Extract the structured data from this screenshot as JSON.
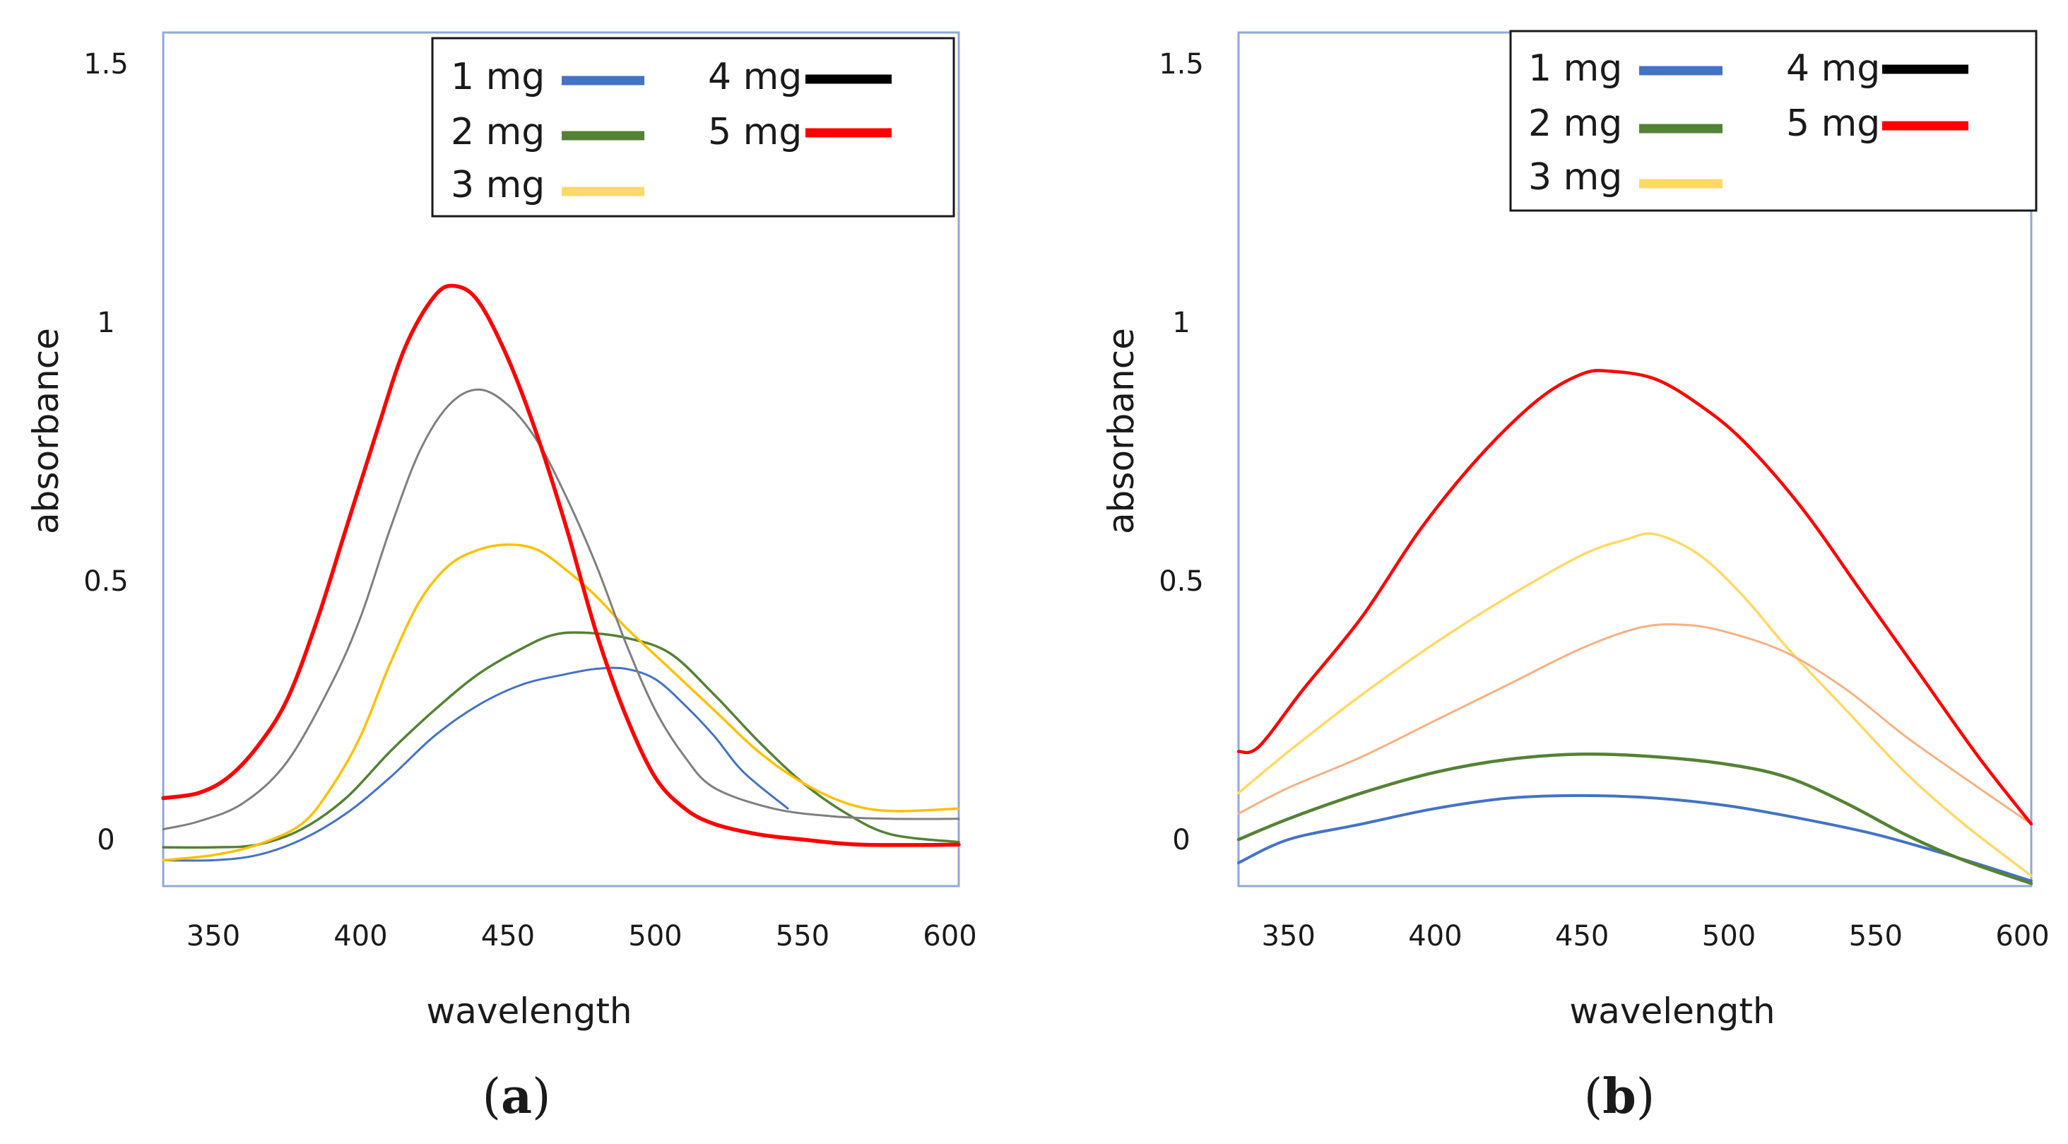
{
  "figure_labels": [
    {
      "open": "(",
      "letter": "a",
      "close": ")"
    },
    {
      "open": "(",
      "letter": "b",
      "close": ")"
    }
  ],
  "chart_data": [
    {
      "type": "line",
      "panel": "a",
      "title": "",
      "xlabel": "wavelength",
      "ylabel": "absorbance",
      "xlim": [
        333,
        603
      ],
      "ylim": [
        -0.09,
        1.56
      ],
      "xticks": [
        350,
        400,
        450,
        500,
        550,
        600
      ],
      "xtick_labels": [
        "350",
        "400",
        "450",
        "500",
        "550",
        "600"
      ],
      "yticks": [
        0,
        0.5,
        1,
        1.5
      ],
      "ytick_labels": [
        "0",
        "0.5",
        "1",
        "1.5"
      ],
      "legend_position": "top-right",
      "series": [
        {
          "name": "1 mg",
          "color": "#4472c4",
          "legend_color": "#4472c4",
          "x": [
            333,
            350,
            365,
            380,
            395,
            410,
            425,
            440,
            455,
            470,
            480,
            490,
            500,
            510,
            520,
            530,
            545
          ],
          "y": [
            -0.04,
            -0.04,
            -0.03,
            0.0,
            0.05,
            0.12,
            0.2,
            0.26,
            0.3,
            0.32,
            0.33,
            0.33,
            0.31,
            0.26,
            0.2,
            0.13,
            0.06
          ]
        },
        {
          "name": "2 mg",
          "color": "#548235",
          "legend_color": "#548235",
          "x": [
            333,
            350,
            365,
            380,
            395,
            410,
            425,
            440,
            455,
            465,
            475,
            490,
            505,
            520,
            535,
            550,
            565,
            580,
            603
          ],
          "y": [
            -0.015,
            -0.015,
            -0.01,
            0.02,
            0.08,
            0.17,
            0.25,
            0.32,
            0.37,
            0.395,
            0.4,
            0.39,
            0.36,
            0.28,
            0.19,
            0.11,
            0.05,
            0.01,
            -0.005
          ]
        },
        {
          "name": "3 mg",
          "color": "#ffc000",
          "legend_color": "#ffd966",
          "x": [
            333,
            350,
            365,
            380,
            390,
            400,
            410,
            420,
            430,
            440,
            450,
            460,
            470,
            480,
            490,
            505,
            520,
            535,
            550,
            565,
            580,
            603
          ],
          "y": [
            -0.04,
            -0.03,
            -0.01,
            0.03,
            0.1,
            0.2,
            0.34,
            0.46,
            0.53,
            0.56,
            0.57,
            0.56,
            0.52,
            0.47,
            0.41,
            0.33,
            0.25,
            0.17,
            0.11,
            0.07,
            0.055,
            0.06
          ]
        },
        {
          "name": "4 mg",
          "color": "#7f7f7f",
          "legend_color": "#000000",
          "x": [
            333,
            345,
            360,
            375,
            390,
            400,
            410,
            420,
            430,
            440,
            450,
            460,
            470,
            480,
            490,
            500,
            510,
            520,
            540,
            560,
            580,
            603
          ],
          "y": [
            0.02,
            0.035,
            0.07,
            0.15,
            0.3,
            0.43,
            0.6,
            0.75,
            0.84,
            0.87,
            0.84,
            0.77,
            0.66,
            0.53,
            0.38,
            0.25,
            0.16,
            0.1,
            0.06,
            0.045,
            0.04,
            0.04
          ]
        },
        {
          "name": "5 mg",
          "color": "#ff0000",
          "legend_color": "#ff0000",
          "x": [
            333,
            345,
            355,
            365,
            375,
            385,
            395,
            405,
            415,
            425,
            432,
            440,
            450,
            460,
            470,
            480,
            490,
            500,
            510,
            520,
            535,
            550,
            570,
            603
          ],
          "y": [
            0.08,
            0.09,
            0.12,
            0.18,
            0.27,
            0.42,
            0.6,
            0.78,
            0.95,
            1.05,
            1.07,
            1.04,
            0.93,
            0.78,
            0.6,
            0.4,
            0.24,
            0.12,
            0.06,
            0.03,
            0.01,
            0.0,
            -0.01,
            -0.01
          ]
        }
      ]
    },
    {
      "type": "line",
      "panel": "b",
      "title": "",
      "xlabel": "wavelength",
      "ylabel": "absorbance",
      "xlim": [
        333,
        603
      ],
      "ylim": [
        -0.09,
        1.56
      ],
      "xticks": [
        350,
        400,
        450,
        500,
        550,
        600
      ],
      "xtick_labels": [
        "350",
        "400",
        "450",
        "500",
        "550",
        "600"
      ],
      "yticks": [
        0,
        0.5,
        1,
        1.5
      ],
      "ytick_labels": [
        "0",
        "0.5",
        "1",
        "1.5"
      ],
      "legend_position": "top-right",
      "series": [
        {
          "name": "1 mg",
          "color": "#4472c4",
          "legend_color": "#4472c4",
          "x": [
            333,
            350,
            375,
            400,
            425,
            450,
            475,
            500,
            525,
            550,
            575,
            603
          ],
          "y": [
            -0.045,
            0.0,
            0.03,
            0.06,
            0.08,
            0.085,
            0.08,
            0.065,
            0.04,
            0.01,
            -0.03,
            -0.08
          ]
        },
        {
          "name": "2 mg",
          "color": "#548235",
          "legend_color": "#548235",
          "x": [
            333,
            350,
            375,
            400,
            425,
            450,
            475,
            500,
            520,
            540,
            560,
            580,
            603
          ],
          "y": [
            0.0,
            0.04,
            0.09,
            0.13,
            0.155,
            0.165,
            0.16,
            0.145,
            0.12,
            0.07,
            0.01,
            -0.04,
            -0.085
          ]
        },
        {
          "name": "3 mg",
          "color": "#ffd966",
          "legend_color": "#ffd966",
          "x": [
            333,
            350,
            375,
            400,
            425,
            450,
            465,
            475,
            490,
            505,
            520,
            540,
            560,
            580,
            603
          ],
          "y": [
            0.09,
            0.17,
            0.28,
            0.38,
            0.47,
            0.55,
            0.58,
            0.59,
            0.55,
            0.47,
            0.37,
            0.25,
            0.13,
            0.03,
            -0.07
          ]
        },
        {
          "name": "4 mg",
          "color": "#f4b183",
          "legend_color": "#000000",
          "x": [
            333,
            350,
            375,
            400,
            425,
            450,
            470,
            485,
            500,
            520,
            540,
            560,
            580,
            603
          ],
          "y": [
            0.05,
            0.1,
            0.16,
            0.23,
            0.3,
            0.37,
            0.41,
            0.415,
            0.4,
            0.36,
            0.29,
            0.2,
            0.12,
            0.03
          ]
        },
        {
          "name": "5 mg",
          "color": "#ff0000",
          "legend_color": "#ff0000",
          "x": [
            333,
            340,
            355,
            375,
            395,
            415,
            435,
            450,
            460,
            475,
            490,
            505,
            525,
            545,
            565,
            585,
            603
          ],
          "y": [
            0.17,
            0.18,
            0.29,
            0.43,
            0.6,
            0.74,
            0.85,
            0.9,
            0.905,
            0.89,
            0.84,
            0.77,
            0.64,
            0.48,
            0.32,
            0.16,
            0.03
          ]
        }
      ]
    }
  ]
}
